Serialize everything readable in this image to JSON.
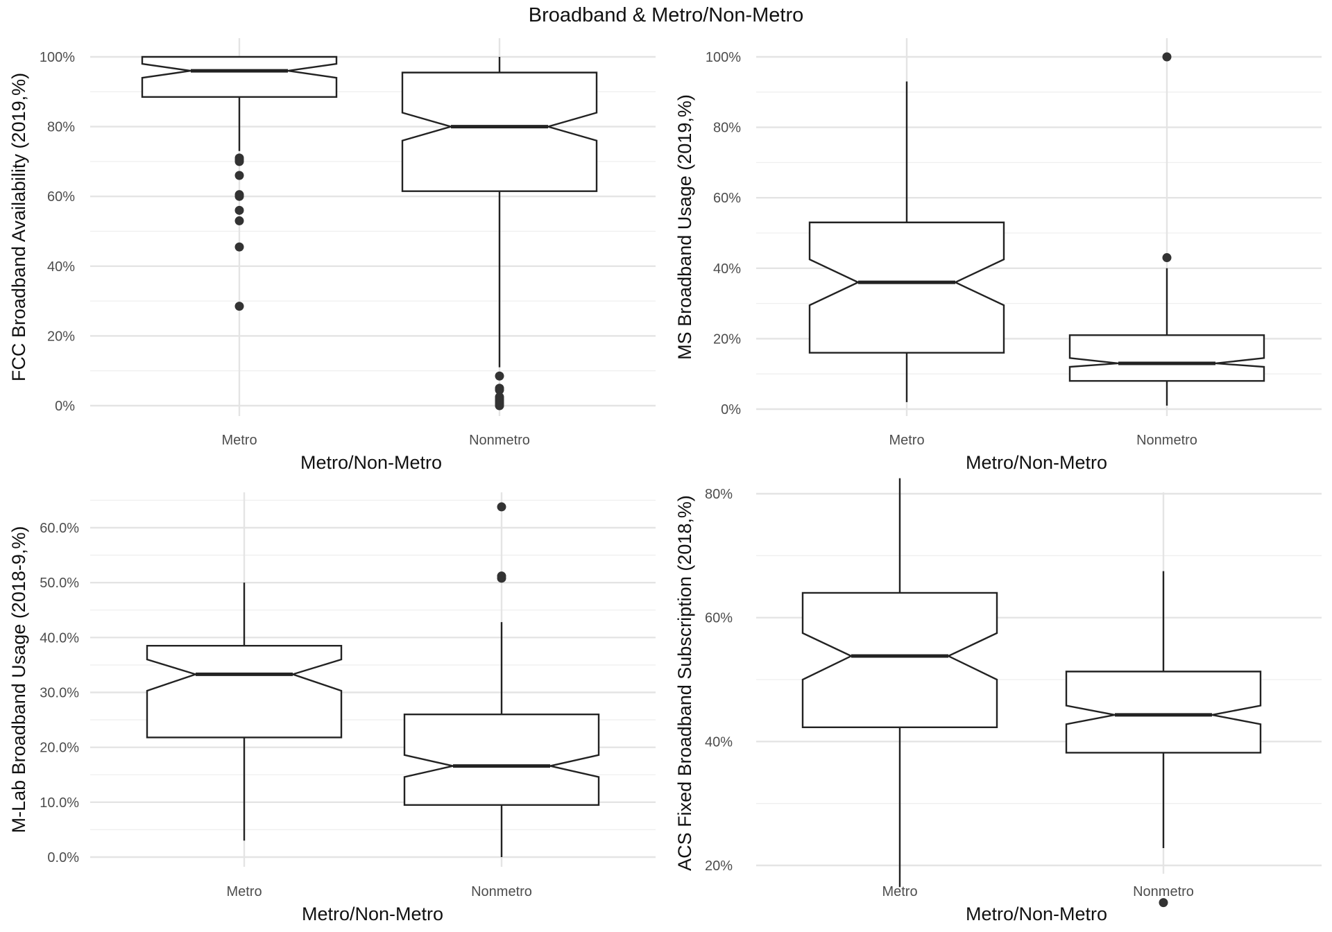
{
  "title": "Broadband & Metro/Non-Metro",
  "chart_data": [
    {
      "type": "boxplot",
      "notched": true,
      "xlabel": "Metro/Non-Metro",
      "ylabel": "FCC Broadband Availability (2019,%)",
      "ylim": [
        0,
        1
      ],
      "yticks": [
        0,
        0.2,
        0.4,
        0.6,
        0.8,
        1.0
      ],
      "ytick_labels": [
        "0%",
        "20%",
        "40%",
        "60%",
        "80%",
        "100%"
      ],
      "categories": [
        "Metro",
        "Nonmetro"
      ],
      "boxes": [
        {
          "category": "Metro",
          "whisker_low": 0.73,
          "q1": 0.885,
          "median": 0.96,
          "q3": 1.0,
          "whisker_high": 1.0,
          "notch_low": 0.94,
          "notch_high": 0.98,
          "outliers": [
            0.71,
            0.705,
            0.7,
            0.66,
            0.605,
            0.6,
            0.56,
            0.53,
            0.455,
            0.285
          ]
        },
        {
          "category": "Nonmetro",
          "whisker_low": 0.11,
          "q1": 0.615,
          "median": 0.8,
          "q3": 0.955,
          "whisker_high": 1.0,
          "notch_low": 0.76,
          "notch_high": 0.84,
          "outliers": [
            0.085,
            0.05,
            0.045,
            0.025,
            0.02,
            0.015,
            0.01,
            0.005,
            0.0
          ]
        }
      ]
    },
    {
      "type": "boxplot",
      "notched": true,
      "xlabel": "Metro/Non-Metro",
      "ylabel": "MS Broadband Usage (2019,%)",
      "ylim": [
        0,
        1
      ],
      "yticks": [
        0,
        0.2,
        0.4,
        0.6,
        0.8,
        1.0
      ],
      "ytick_labels": [
        "0%",
        "20%",
        "40%",
        "60%",
        "80%",
        "100%"
      ],
      "categories": [
        "Metro",
        "Nonmetro"
      ],
      "boxes": [
        {
          "category": "Metro",
          "whisker_low": 0.02,
          "q1": 0.16,
          "median": 0.36,
          "q3": 0.53,
          "whisker_high": 0.93,
          "notch_low": 0.295,
          "notch_high": 0.425,
          "outliers": []
        },
        {
          "category": "Nonmetro",
          "whisker_low": 0.01,
          "q1": 0.08,
          "median": 0.13,
          "q3": 0.21,
          "whisker_high": 0.4,
          "notch_low": 0.12,
          "notch_high": 0.145,
          "outliers": [
            0.43,
            1.0
          ]
        }
      ]
    },
    {
      "type": "boxplot",
      "notched": true,
      "xlabel": "Metro/Non-Metro",
      "ylabel": "M-Lab Broadband Usage (2018-9,%)",
      "ylim": [
        0,
        0.65
      ],
      "yticks": [
        0,
        0.1,
        0.2,
        0.3,
        0.4,
        0.5,
        0.6
      ],
      "ytick_labels": [
        "0.0%",
        "10.0%",
        "20.0%",
        "30.0%",
        "40.0%",
        "50.0%",
        "60.0%"
      ],
      "categories": [
        "Metro",
        "Nonmetro"
      ],
      "boxes": [
        {
          "category": "Metro",
          "whisker_low": 0.03,
          "q1": 0.218,
          "median": 0.333,
          "q3": 0.385,
          "whisker_high": 0.5,
          "notch_low": 0.303,
          "notch_high": 0.36,
          "outliers": []
        },
        {
          "category": "Nonmetro",
          "whisker_low": 0.0,
          "q1": 0.095,
          "median": 0.166,
          "q3": 0.26,
          "whisker_high": 0.428,
          "notch_low": 0.146,
          "notch_high": 0.186,
          "outliers": [
            0.508,
            0.512,
            0.638
          ]
        }
      ]
    },
    {
      "type": "boxplot",
      "notched": true,
      "xlabel": "Metro/Non-Metro",
      "ylabel": "ACS Fixed Broadband Subscription (2018,%)",
      "ylim": [
        0.12,
        0.85
      ],
      "yticks": [
        0.2,
        0.4,
        0.6,
        0.8
      ],
      "ytick_labels": [
        "20%",
        "40%",
        "60%",
        "80%"
      ],
      "categories": [
        "Metro",
        "Nonmetro"
      ],
      "boxes": [
        {
          "category": "Metro",
          "whisker_low": 0.165,
          "q1": 0.423,
          "median": 0.538,
          "q3": 0.64,
          "whisker_high": 0.825,
          "notch_low": 0.5,
          "notch_high": 0.575,
          "outliers": []
        },
        {
          "category": "Nonmetro",
          "whisker_low": 0.228,
          "q1": 0.382,
          "median": 0.443,
          "q3": 0.513,
          "whisker_high": 0.675,
          "notch_low": 0.428,
          "notch_high": 0.458,
          "outliers": [
            0.14
          ]
        }
      ]
    }
  ]
}
